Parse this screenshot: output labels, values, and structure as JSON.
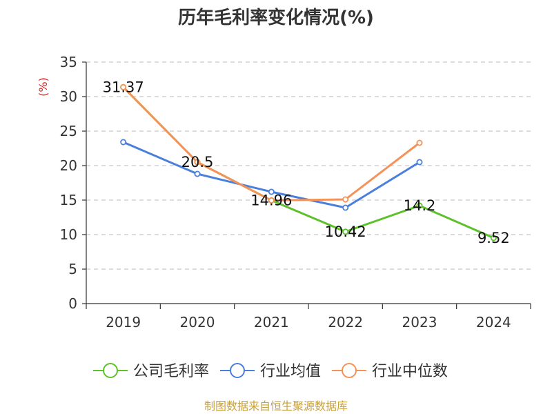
{
  "chart_data": {
    "type": "line",
    "title": "历年毛利率变化情况(%)",
    "ylabel": "(%)",
    "xlabel": "",
    "categories": [
      "2019",
      "2020",
      "2021",
      "2022",
      "2023",
      "2024"
    ],
    "ylim": [
      0,
      35
    ],
    "yticks": [
      0,
      5,
      10,
      15,
      20,
      25,
      30,
      35
    ],
    "grid": true,
    "legend_position": "bottom",
    "series": [
      {
        "name": "公司毛利率",
        "color": "#5cc12a",
        "values": [
          31.37,
          20.5,
          14.96,
          10.42,
          14.2,
          9.52
        ],
        "labels": [
          "31.37",
          "20.5",
          "14.96",
          "10.42",
          "14.2",
          "9.52"
        ]
      },
      {
        "name": "行业均值",
        "color": "#4a7fdb",
        "values": [
          23.4,
          18.8,
          16.2,
          13.9,
          20.5,
          null
        ]
      },
      {
        "name": "行业中位数",
        "color": "#f59258",
        "values": [
          31.37,
          20.5,
          14.96,
          15.1,
          23.3,
          null
        ]
      }
    ]
  },
  "footer": "制图数据来自恒生聚源数据库",
  "colors": {
    "title": "#333333",
    "ylabel": "#e02020",
    "footer": "#c8a03c",
    "grid": "#c8c8c8",
    "axis": "#333333"
  }
}
